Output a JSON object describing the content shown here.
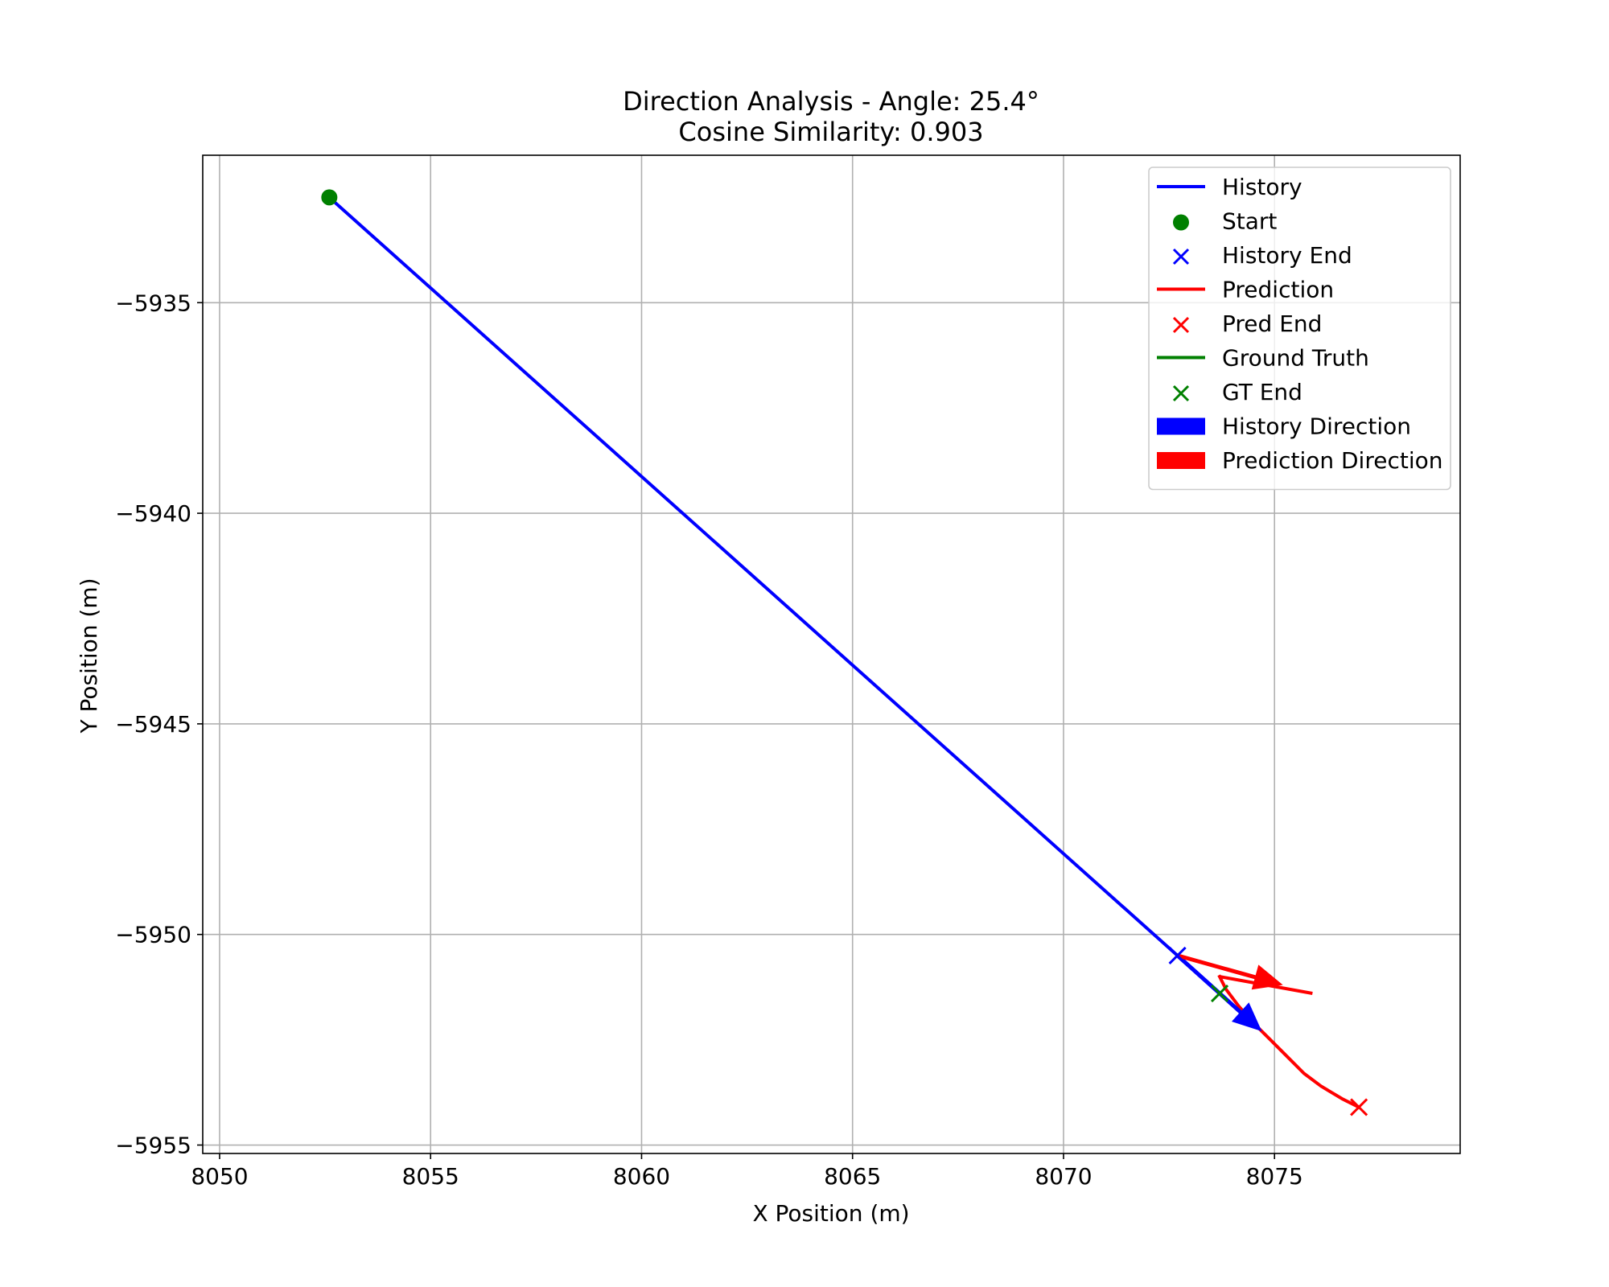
{
  "chart_data": {
    "type": "line",
    "title": "Direction Analysis - Angle: 25.4°",
    "subtitle": "Cosine Similarity: 0.903",
    "xlabel": "X Position (m)",
    "ylabel": "Y Position (m)",
    "xlim": [
      8049.6,
      8079.4
    ],
    "ylim": [
      -5955.2,
      -5931.5
    ],
    "xticks": [
      8050,
      8055,
      8060,
      8065,
      8070,
      8075
    ],
    "yticks": [
      -5935,
      -5940,
      -5945,
      -5950,
      -5955
    ],
    "xtick_labels": [
      "8050",
      "8055",
      "8060",
      "8065",
      "8070",
      "8075"
    ],
    "ytick_labels": [
      "−5935",
      "−5940",
      "−5945",
      "−5950",
      "−5955"
    ],
    "grid": true,
    "legend_position": "top-right",
    "colors": {
      "history": "#0000ff",
      "prediction": "#ff0000",
      "ground_truth": "#008000"
    },
    "series": [
      {
        "name": "History",
        "kind": "line",
        "color": "#0000ff",
        "points": [
          [
            8052.6,
            -5932.5
          ],
          [
            8072.7,
            -5950.5
          ]
        ]
      },
      {
        "name": "Start",
        "kind": "dot",
        "color": "#008000",
        "points": [
          [
            8052.6,
            -5932.5
          ]
        ]
      },
      {
        "name": "History End",
        "kind": "x",
        "color": "#0000ff",
        "points": [
          [
            8072.7,
            -5950.5
          ]
        ]
      },
      {
        "name": "Prediction",
        "kind": "line",
        "color": "#ff0000",
        "points": [
          [
            8073.7,
            -5951.0
          ],
          [
            8073.85,
            -5951.3
          ],
          [
            8074.15,
            -5951.7
          ],
          [
            8074.5,
            -5952.1
          ],
          [
            8074.9,
            -5952.5
          ],
          [
            8075.3,
            -5952.9
          ],
          [
            8075.7,
            -5953.3
          ],
          [
            8076.1,
            -5953.6
          ],
          [
            8076.6,
            -5953.9
          ],
          [
            8077.0,
            -5954.1
          ]
        ]
      },
      {
        "name": "Pred End",
        "kind": "x",
        "color": "#ff0000",
        "points": [
          [
            8077.0,
            -5954.1
          ]
        ]
      },
      {
        "name": "Ground Truth",
        "kind": "line",
        "color": "#008000",
        "points": [
          [
            8072.7,
            -5950.5
          ],
          [
            8073.2,
            -5950.95
          ],
          [
            8073.7,
            -5951.4
          ]
        ]
      },
      {
        "name": "GT End",
        "kind": "x",
        "color": "#008000",
        "points": [
          [
            8073.7,
            -5951.4
          ]
        ]
      },
      {
        "name": "History Direction",
        "kind": "arrow",
        "color": "#0000ff",
        "from": [
          8072.7,
          -5950.5
        ],
        "to": [
          8074.7,
          -5952.3
        ]
      },
      {
        "name": "Prediction Direction",
        "kind": "arrow",
        "color": "#ff0000",
        "from": [
          8072.7,
          -5950.5
        ],
        "to": [
          8075.2,
          -5951.2
        ]
      }
    ],
    "extra_segments": [
      {
        "color": "#ff0000",
        "points": [
          [
            8073.7,
            -5951.0
          ],
          [
            8075.9,
            -5951.4
          ]
        ]
      }
    ],
    "legend": [
      {
        "label": "History",
        "kind": "line",
        "color": "#0000ff"
      },
      {
        "label": "Start",
        "kind": "dot",
        "color": "#008000"
      },
      {
        "label": "History End",
        "kind": "x",
        "color": "#0000ff"
      },
      {
        "label": "Prediction",
        "kind": "line",
        "color": "#ff0000"
      },
      {
        "label": "Pred End",
        "kind": "x",
        "color": "#ff0000"
      },
      {
        "label": "Ground Truth",
        "kind": "line",
        "color": "#008000"
      },
      {
        "label": "GT End",
        "kind": "x",
        "color": "#008000"
      },
      {
        "label": "History Direction",
        "kind": "patch",
        "color": "#0000ff"
      },
      {
        "label": "Prediction Direction",
        "kind": "patch",
        "color": "#ff0000"
      }
    ]
  }
}
